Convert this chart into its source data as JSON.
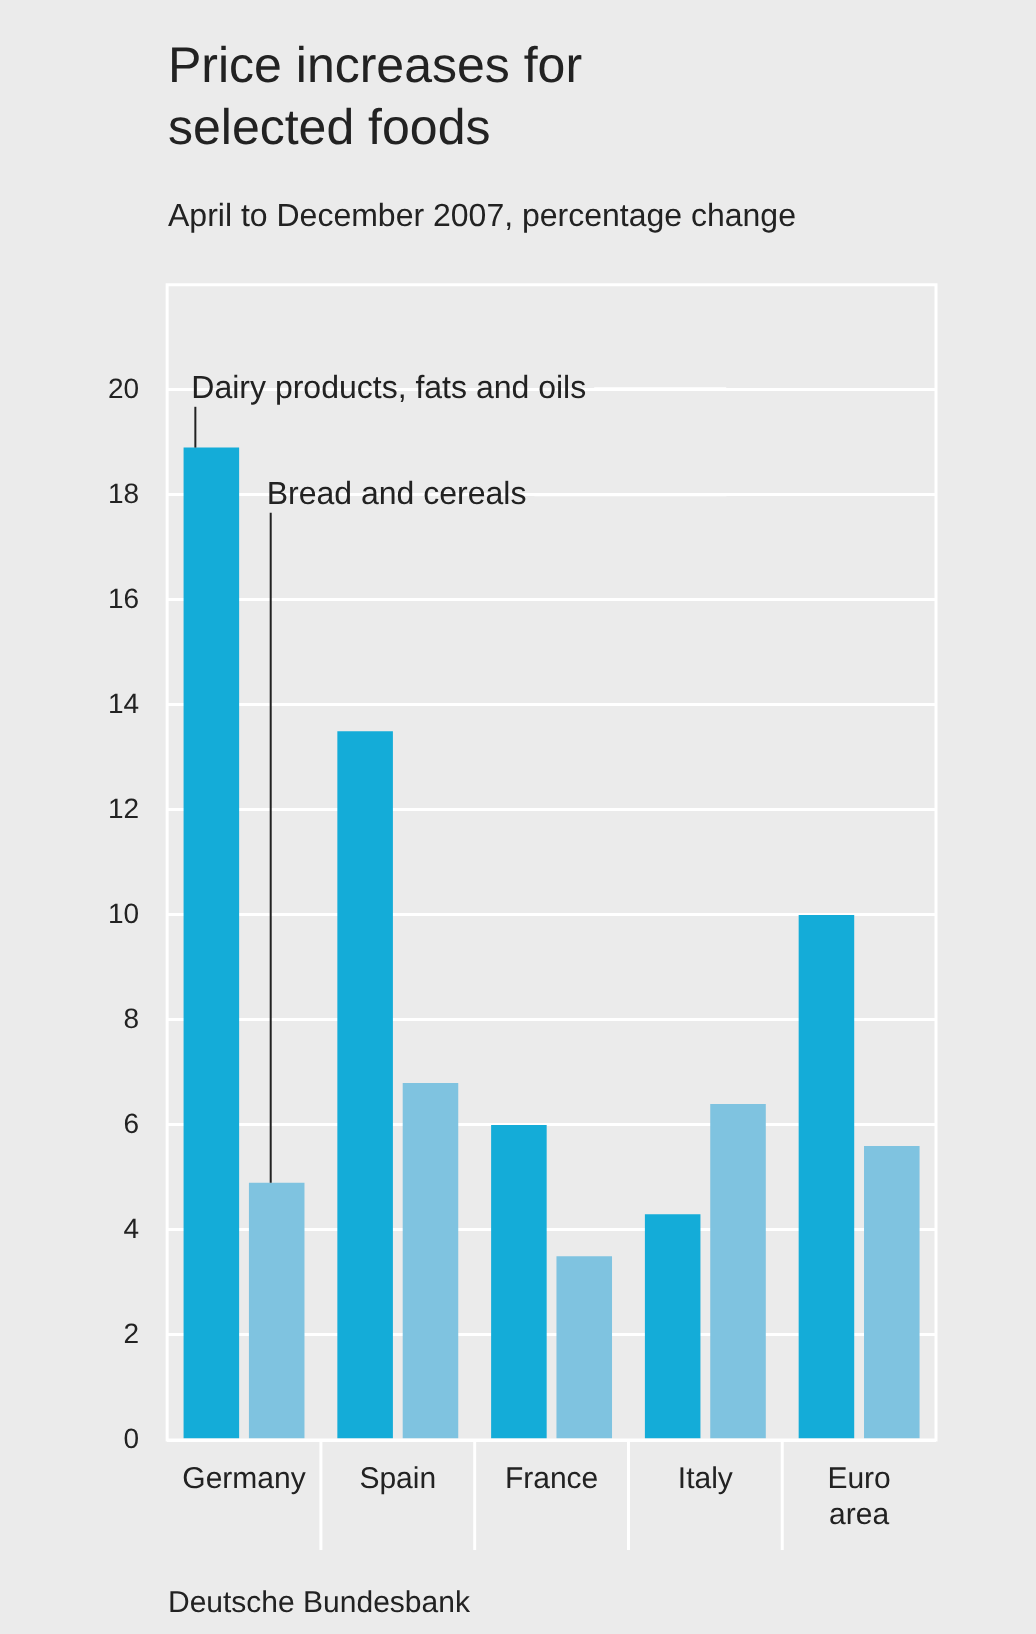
{
  "chart_data": {
    "type": "bar",
    "title": "Price increases for selected foods",
    "subtitle": "April to December 2007, percentage change",
    "categories": [
      "Germany",
      "Spain",
      "France",
      "Italy",
      "Euro area"
    ],
    "series": [
      {
        "name": "Dairy products, fats and oils",
        "color": "#14acd8",
        "values": [
          18.9,
          13.5,
          6.0,
          4.3,
          10.0
        ]
      },
      {
        "name": "Bread and cereals",
        "color": "#7fc3e0",
        "values": [
          4.9,
          6.8,
          3.5,
          6.4,
          5.6
        ]
      }
    ],
    "ylim": [
      0,
      22
    ],
    "yticks": [
      0,
      2,
      4,
      6,
      8,
      10,
      12,
      14,
      16,
      18,
      20
    ],
    "grid": "y",
    "legend": false,
    "annotations": [
      "Deutsche Bundesbank"
    ]
  }
}
